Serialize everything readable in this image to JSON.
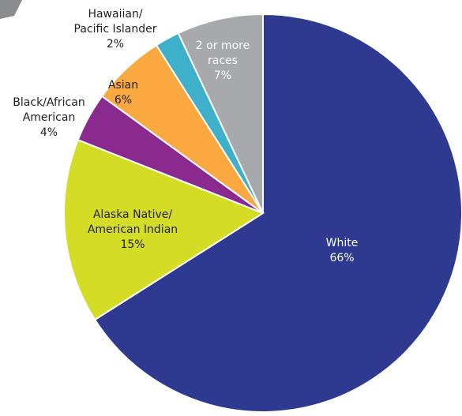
{
  "chart_data": {
    "type": "pie",
    "categories": [
      "White",
      "Alaska Native/\nAmerican Indian",
      "Black/African\nAmerican",
      "Asian",
      "Hawaiian/\nPacific Islander",
      "2 or more\nraces"
    ],
    "values": [
      66,
      15,
      4,
      6,
      2,
      7
    ],
    "value_labels": [
      "66%",
      "15%",
      "4%",
      "6%",
      "2%",
      "7%"
    ],
    "colors": [
      "#2e3a8f",
      "#d4dc26",
      "#8b2a8e",
      "#f9a93f",
      "#3fb0c9",
      "#a7a9ac"
    ]
  }
}
